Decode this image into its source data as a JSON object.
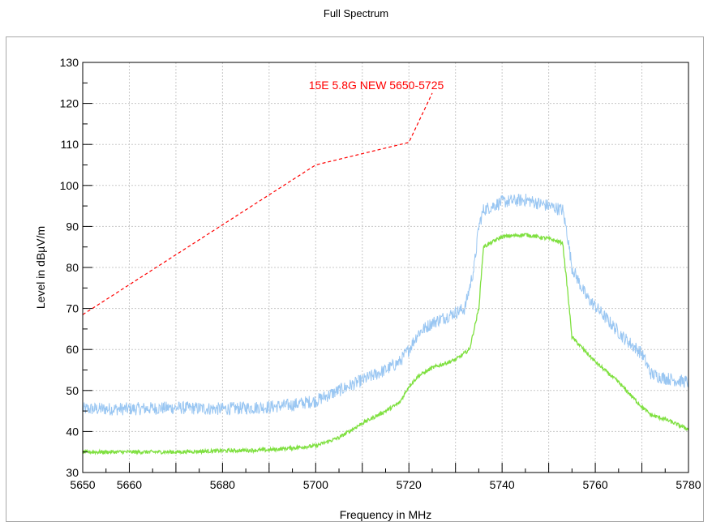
{
  "chart_data": {
    "type": "line",
    "title": "Full Spectrum",
    "xlabel": "Frequency in MHz",
    "ylabel": "Level in dBµV/m",
    "xlim": [
      5650,
      5780
    ],
    "ylim": [
      30,
      130
    ],
    "x_ticks": [
      5650,
      5660,
      5680,
      5700,
      5720,
      5740,
      5760,
      5780
    ],
    "y_ticks": [
      30,
      40,
      50,
      60,
      70,
      80,
      90,
      100,
      110,
      120,
      130
    ],
    "grid": true,
    "annotation": {
      "text": "15E 5.8G NEW 5650-5725",
      "x": 5713,
      "y": 123.5,
      "color": "#ff0000"
    },
    "series": [
      {
        "style": "dashed",
        "color": "#ff0000",
        "x": [
          5650,
          5700,
          5720,
          5725
        ],
        "y": [
          68.5,
          105,
          110.5,
          122.5
        ]
      },
      {
        "style": "noisy",
        "color": "#99c6f2",
        "x": [
          5650,
          5660,
          5670,
          5680,
          5690,
          5695,
          5700,
          5705,
          5710,
          5715,
          5718,
          5720,
          5722,
          5725,
          5728,
          5732,
          5734,
          5735,
          5736,
          5740,
          5745,
          5750,
          5753,
          5754,
          5755,
          5758,
          5762,
          5766,
          5770,
          5772,
          5775,
          5780
        ],
        "y": [
          45.5,
          45.5,
          45.8,
          45.5,
          46,
          46.5,
          47.5,
          50,
          52.5,
          55,
          57,
          60,
          64,
          66.5,
          68,
          70,
          80,
          90,
          94,
          96,
          96.5,
          95,
          94,
          88,
          80,
          73,
          68,
          63,
          59,
          54,
          53,
          52
        ]
      },
      {
        "style": "smooth",
        "color": "#7fe040",
        "x": [
          5650,
          5670,
          5680,
          5690,
          5700,
          5705,
          5710,
          5715,
          5718,
          5720,
          5722,
          5725,
          5730,
          5733,
          5735,
          5736,
          5740,
          5745,
          5750,
          5753,
          5754,
          5755,
          5760,
          5765,
          5770,
          5772,
          5775,
          5780
        ],
        "y": [
          35,
          35,
          35.3,
          35.5,
          36.5,
          38.5,
          42,
          45,
          47,
          51,
          53.5,
          55.5,
          57.5,
          60,
          70,
          85,
          87.5,
          88,
          87,
          86,
          75,
          63,
          57,
          52,
          46,
          44,
          43,
          40.5
        ]
      }
    ]
  }
}
